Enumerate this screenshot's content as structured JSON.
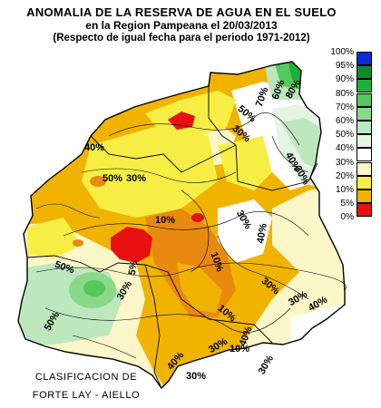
{
  "title": {
    "line1": "ANOMALIA DE LA RESERVA DE AGUA EN EL SUELO",
    "line2": "en la Region Pampeana el   20/03/2013",
    "line3": "(Respecto de igual fecha para el periodo 1971-2012)"
  },
  "legend": [
    {
      "label": "100%",
      "color": "#0a2bd6"
    },
    {
      "label": "95%",
      "color": "#0a8c2a"
    },
    {
      "label": "90%",
      "color": "#1fb03c"
    },
    {
      "label": "80%",
      "color": "#56c860"
    },
    {
      "label": "70%",
      "color": "#8ad88a"
    },
    {
      "label": "60%",
      "color": "#bde8bd"
    },
    {
      "label": "50%",
      "color": "#e4f5e4"
    },
    {
      "label": "40%",
      "color": "#fefefe"
    },
    {
      "label": "30%",
      "color": "#fbf7c9"
    },
    {
      "label": "20%",
      "color": "#f6ee45"
    },
    {
      "label": "10%",
      "color": "#f0b400"
    },
    {
      "label": "5%",
      "color": "#e98a10"
    },
    {
      "label": "0%",
      "color": "#e81010"
    }
  ],
  "isolines": [
    "70%",
    "60%",
    "80%",
    "50%",
    "30%",
    "40%",
    "30%",
    "40%",
    "30%",
    "10%",
    "10%",
    "30%",
    "40%",
    "30%",
    "5%",
    "10%",
    "50%",
    "30%",
    "50%",
    "40%",
    "30%",
    "10%",
    "30%",
    "40%",
    "30%",
    "40%",
    "30%",
    "50%"
  ],
  "credit": {
    "line1": "CLASIFICACION DE",
    "line2": "FORTE LAY - AIELLO"
  }
}
